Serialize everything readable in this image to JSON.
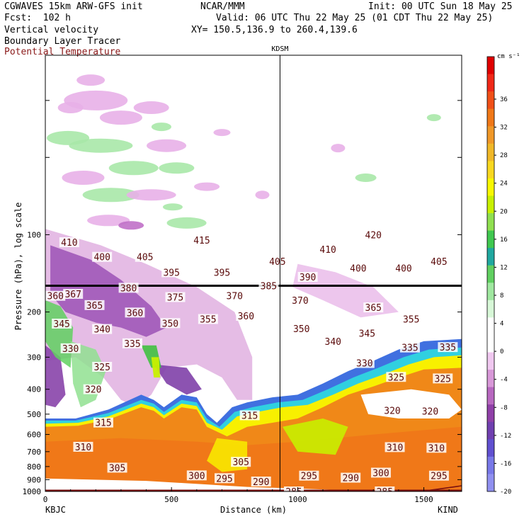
{
  "header": {
    "model": "CGWAVES 15km ARW-GFS init",
    "forecast": "Fcst:  102 h",
    "field1": "Vertical velocity",
    "field2": "Boundary Layer Tracer",
    "field3": "Potential Temperature",
    "agency": "NCAR/MMM",
    "init": "Init: 00 UTC Sun 18 May 25",
    "valid": "Valid: 06 UTC Thu 22 May 25 (01 CDT Thu 22 May 25)",
    "xy": "XY= 150.5,136.9 to 260.4,139.6"
  },
  "colorbar": {
    "units": "cm s⁻¹",
    "levels": [
      "36",
      "32",
      "28",
      "24",
      "20",
      "16",
      "12",
      "8",
      "4",
      "0",
      "-4",
      "-8",
      "-12",
      "-16",
      "-20"
    ],
    "colors": [
      "#e00000",
      "#f02818",
      "#f05018",
      "#f07818",
      "#f09828",
      "#f0b828",
      "#f8d820",
      "#f8f800",
      "#c8f000",
      "#90e050",
      "#40c850",
      "#20a8a0",
      "#60d060",
      "#a0e8a0",
      "#d8f8d8",
      "#ffffff",
      "#ffffff",
      "#f0c8f0",
      "#d898d8",
      "#b868c0",
      "#9040a8",
      "#7040b0",
      "#6050d0",
      "#7878e8",
      "#9090f0"
    ]
  },
  "chart_data": {
    "type": "heatmap",
    "title": "Vertical velocity",
    "xlabel": "Distance (km)",
    "ylabel": "Pressure (hPa), log scale",
    "xlim": [
      0,
      1650
    ],
    "ylim": [
      1000,
      20
    ],
    "y_scale": "log",
    "x_ticks": [
      0,
      500,
      1000,
      1500
    ],
    "y_ticks": [
      100,
      200,
      300,
      400,
      500,
      600,
      700,
      800,
      900,
      1000
    ],
    "station_left": "KBJC",
    "station_mid": "KDSM",
    "station_right": "KIND",
    "theta_labels": [
      {
        "v": "410",
        "x": 95,
        "p": 107
      },
      {
        "v": "415",
        "x": 620,
        "p": 105
      },
      {
        "v": "420",
        "x": 1300,
        "p": 100
      },
      {
        "v": "400",
        "x": 225,
        "p": 122
      },
      {
        "v": "405",
        "x": 395,
        "p": 122
      },
      {
        "v": "405",
        "x": 920,
        "p": 127
      },
      {
        "v": "410",
        "x": 1120,
        "p": 114
      },
      {
        "v": "400",
        "x": 1240,
        "p": 135
      },
      {
        "v": "400",
        "x": 1420,
        "p": 135
      },
      {
        "v": "405",
        "x": 1560,
        "p": 127
      },
      {
        "v": "395",
        "x": 500,
        "p": 140
      },
      {
        "v": "395",
        "x": 700,
        "p": 140
      },
      {
        "v": "390",
        "x": 1040,
        "p": 146
      },
      {
        "v": "385",
        "x": 885,
        "p": 158
      },
      {
        "v": "380",
        "x": 330,
        "p": 161
      },
      {
        "v": "360",
        "x": 40,
        "p": 173
      },
      {
        "v": "367",
        "x": 110,
        "p": 170
      },
      {
        "v": "375",
        "x": 515,
        "p": 175
      },
      {
        "v": "370",
        "x": 750,
        "p": 173
      },
      {
        "v": "370",
        "x": 1010,
        "p": 180
      },
      {
        "v": "365",
        "x": 195,
        "p": 188
      },
      {
        "v": "360",
        "x": 355,
        "p": 201
      },
      {
        "v": "365",
        "x": 1300,
        "p": 192
      },
      {
        "v": "360",
        "x": 795,
        "p": 207
      },
      {
        "v": "355",
        "x": 645,
        "p": 213
      },
      {
        "v": "355",
        "x": 1450,
        "p": 213
      },
      {
        "v": "350",
        "x": 495,
        "p": 221
      },
      {
        "v": "350",
        "x": 1015,
        "p": 232
      },
      {
        "v": "345",
        "x": 65,
        "p": 222
      },
      {
        "v": "340",
        "x": 225,
        "p": 233
      },
      {
        "v": "345",
        "x": 1275,
        "p": 242
      },
      {
        "v": "340",
        "x": 1140,
        "p": 260
      },
      {
        "v": "335",
        "x": 345,
        "p": 265
      },
      {
        "v": "335",
        "x": 1445,
        "p": 275
      },
      {
        "v": "335",
        "x": 1595,
        "p": 274
      },
      {
        "v": "330",
        "x": 100,
        "p": 277
      },
      {
        "v": "330",
        "x": 1265,
        "p": 316
      },
      {
        "v": "325",
        "x": 225,
        "p": 327
      },
      {
        "v": "325",
        "x": 1390,
        "p": 358
      },
      {
        "v": "325",
        "x": 1575,
        "p": 363
      },
      {
        "v": "320",
        "x": 190,
        "p": 400
      },
      {
        "v": "320",
        "x": 1375,
        "p": 484
      },
      {
        "v": "320",
        "x": 1525,
        "p": 486
      },
      {
        "v": "315",
        "x": 230,
        "p": 539
      },
      {
        "v": "315",
        "x": 810,
        "p": 505
      },
      {
        "v": "310",
        "x": 150,
        "p": 670
      },
      {
        "v": "310",
        "x": 1385,
        "p": 672
      },
      {
        "v": "310",
        "x": 1550,
        "p": 676
      },
      {
        "v": "305",
        "x": 285,
        "p": 808
      },
      {
        "v": "305",
        "x": 775,
        "p": 767
      },
      {
        "v": "300",
        "x": 600,
        "p": 866
      },
      {
        "v": "300",
        "x": 1330,
        "p": 845
      },
      {
        "v": "295",
        "x": 710,
        "p": 888
      },
      {
        "v": "295",
        "x": 1045,
        "p": 868
      },
      {
        "v": "290",
        "x": 855,
        "p": 915
      },
      {
        "v": "290",
        "x": 1210,
        "p": 884
      },
      {
        "v": "295",
        "x": 1560,
        "p": 868
      },
      {
        "v": "285",
        "x": 985,
        "p": 1000
      },
      {
        "v": "285",
        "x": 1345,
        "p": 1000
      }
    ]
  }
}
